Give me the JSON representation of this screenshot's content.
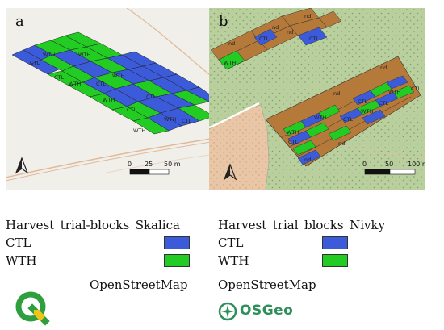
{
  "panel_a": {
    "letter": "a",
    "block_labels": [
      "CTL",
      "WTH",
      "WTH",
      "CTL",
      "WTH",
      "CTL",
      "WTH",
      "CTL",
      "WTH",
      "CTL",
      "CTL",
      "WTH",
      "WTH"
    ],
    "scale": {
      "ticks": [
        "0",
        "25",
        "50 m"
      ]
    }
  },
  "panel_b": {
    "letter": "b",
    "block_labels": [
      "nd",
      "nd",
      "nd",
      "CTL",
      "CTL",
      "WTH",
      "nd",
      "nd",
      "WTH",
      "CTL",
      "WTH",
      "nd",
      "CTL",
      "CTL",
      "WTH",
      "WTH",
      "CTL",
      "CTL",
      "nd",
      "nd"
    ],
    "scale": {
      "ticks": [
        "0",
        "50",
        "100 m"
      ]
    }
  },
  "legend": {
    "left": {
      "title": "Harvest_trial-blocks_Skalica",
      "items": [
        {
          "label": "CTL",
          "color": "#3b5bdb"
        },
        {
          "label": "WTH",
          "color": "#22cc22"
        }
      ],
      "basemap": "OpenStreetMap"
    },
    "right": {
      "title": "Harvest_trial_blocks_Nivky",
      "items": [
        {
          "label": "CTL",
          "color": "#3b5bdb"
        },
        {
          "label": "WTH",
          "color": "#22cc22"
        }
      ],
      "basemap": "OpenStreetMap"
    }
  },
  "logos": {
    "qgis": "qgis-logo",
    "osgeo": "OSGeo"
  },
  "colors": {
    "ctl": "#3b5bdb",
    "wth": "#22cc22",
    "nd": "#b5793a",
    "terrain_a": "#f1efe9",
    "forest_b": "#b9cf9d",
    "clearing_b": "#e9c6a5"
  }
}
